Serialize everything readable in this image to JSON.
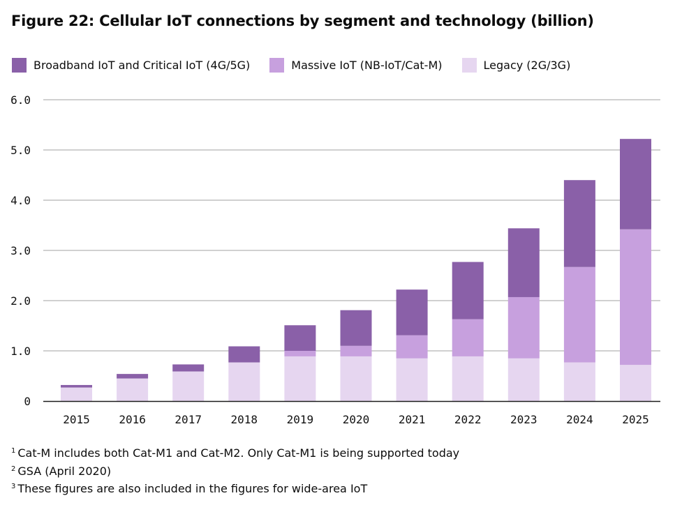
{
  "title": "Figure 22: Cellular IoT connections by segment and technology (billion)",
  "colors": {
    "broadband": "#8a60a8",
    "massive": "#c7a0de",
    "legacy": "#e6d6f0",
    "grid": "#a0a0a0",
    "axis": "#1a1a1a"
  },
  "legend": [
    {
      "label": "Broadband IoT and Critical IoT (4G/5G)",
      "key": "broadband"
    },
    {
      "label": "Massive IoT (NB-IoT/Cat-M)",
      "key": "massive"
    },
    {
      "label": "Legacy (2G/3G)",
      "key": "legacy"
    }
  ],
  "chart_data": {
    "type": "bar",
    "stacked": true,
    "title": "Figure 22: Cellular IoT connections by segment and technology (billion)",
    "xlabel": "",
    "ylabel": "",
    "ylim": [
      0,
      6
    ],
    "yticks": [
      0,
      1,
      2,
      3,
      4,
      5,
      6
    ],
    "ytick_labels": [
      "0",
      "1.0",
      "2.0",
      "3.0",
      "4.0",
      "5.0",
      "6.0"
    ],
    "grid": true,
    "legend_position": "top-left",
    "categories": [
      "2015",
      "2016",
      "2017",
      "2018",
      "2019",
      "2020",
      "2021",
      "2022",
      "2023",
      "2024",
      "2025"
    ],
    "series": [
      {
        "name": "Legacy (2G/3G)",
        "key": "legacy",
        "values": [
          0.27,
          0.45,
          0.59,
          0.77,
          0.89,
          0.89,
          0.85,
          0.89,
          0.85,
          0.77,
          0.72
        ]
      },
      {
        "name": "Massive IoT (NB-IoT/Cat-M)",
        "key": "massive",
        "values": [
          0.0,
          0.0,
          0.0,
          0.0,
          0.11,
          0.21,
          0.46,
          0.74,
          1.22,
          1.9,
          2.7
        ]
      },
      {
        "name": "Broadband IoT and Critical IoT (4G/5G)",
        "key": "broadband",
        "values": [
          0.05,
          0.09,
          0.14,
          0.32,
          0.51,
          0.71,
          0.91,
          1.14,
          1.37,
          1.73,
          1.8
        ]
      }
    ],
    "totals": [
      0.32,
      0.54,
      0.73,
      1.09,
      1.51,
      1.81,
      2.22,
      2.77,
      3.44,
      4.4,
      5.22
    ]
  },
  "footnotes": [
    {
      "mark": "1",
      "text": "Cat-M includes both Cat-M1 and Cat-M2. Only Cat-M1 is being supported today"
    },
    {
      "mark": "2",
      "text": "GSA (April 2020)"
    },
    {
      "mark": "3",
      "text": "These figures are also included in the figures for wide-area IoT"
    }
  ]
}
